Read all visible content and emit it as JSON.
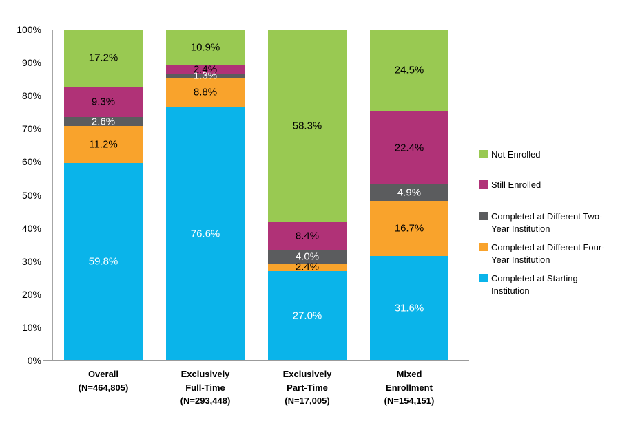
{
  "chart_data": {
    "type": "stacked_bar_100",
    "title": "",
    "categories": [
      {
        "label_lines": [
          "Overall",
          "(N=464,805)"
        ]
      },
      {
        "label_lines": [
          "Exclusively",
          "Full-Time",
          "(N=293,448)"
        ]
      },
      {
        "label_lines": [
          "Exclusively",
          "Part-Time",
          "(N=17,005)"
        ]
      },
      {
        "label_lines": [
          "Mixed",
          "Enrollment",
          "(N=154,151)"
        ]
      }
    ],
    "series": [
      {
        "name": "Completed at Starting Institution",
        "color": "#0ab4ea",
        "label_color": "#ffffff",
        "values": [
          59.8,
          76.6,
          27.0,
          31.6
        ],
        "labels": [
          "59.8%",
          "76.6%",
          "27.0%",
          "31.6%"
        ]
      },
      {
        "name": "Completed at Different Four-Year Institution",
        "color": "#f9a32c",
        "label_color": "#000000",
        "values": [
          11.2,
          8.8,
          2.4,
          16.7
        ],
        "labels": [
          "11.2%",
          "8.8%",
          "2.4%",
          "16.7%"
        ]
      },
      {
        "name": "Completed at Different Two-Year Institution",
        "color": "#5b5c5e",
        "label_color": "#ffffff",
        "values": [
          2.6,
          1.3,
          4.0,
          4.9
        ],
        "labels": [
          "2.6%",
          "1.3%",
          "4.0%",
          "4.9%"
        ]
      },
      {
        "name": "Still Enrolled",
        "color": "#b03277",
        "label_color": "#000000",
        "values": [
          9.3,
          2.4,
          8.4,
          22.4
        ],
        "labels": [
          "9.3%",
          "2.4%",
          "8.4%",
          "22.4%"
        ]
      },
      {
        "name": "Not Enrolled",
        "color": "#99c952",
        "label_color": "#000000",
        "values": [
          17.2,
          10.9,
          58.3,
          24.5
        ],
        "labels": [
          "17.2%",
          "10.9%",
          "58.3%",
          "24.5%"
        ]
      }
    ],
    "y_axis": {
      "min": 0,
      "max": 100,
      "step": 10,
      "tick_labels": [
        "0%",
        "10%",
        "20%",
        "30%",
        "40%",
        "50%",
        "60%",
        "70%",
        "80%",
        "90%",
        "100%"
      ]
    },
    "legend": {
      "position": "right",
      "order": "top-to-bottom-reverse-of-stack",
      "items": [
        "Not Enrolled",
        "Still Enrolled",
        "Completed at Different Two-Year Institution",
        "Completed at Different Four-Year Institution",
        "Completed at Starting Institution"
      ]
    },
    "grid": true
  }
}
